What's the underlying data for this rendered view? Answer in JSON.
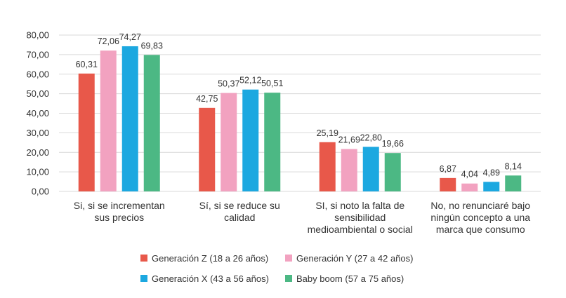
{
  "chart_data": {
    "type": "bar",
    "categories": [
      [
        "Si, si se incrementan",
        "sus precios"
      ],
      [
        "Sí, si se reduce su",
        "calidad"
      ],
      [
        "SI, si noto la falta de",
        "sensibilidad",
        "medioambiental o social"
      ],
      [
        "No, no renunciaré bajo",
        "ningún concepto a una",
        "marca que consumo"
      ]
    ],
    "series": [
      {
        "name": "Generación Z (18 a 26 años)",
        "color": "#e8584a",
        "values": [
          60.31,
          42.75,
          25.19,
          6.87
        ],
        "labels": [
          "60,31",
          "42,75",
          "25,19",
          "6,87"
        ]
      },
      {
        "name": "Generación Y (27 a 42 años)",
        "color": "#f2a2c0",
        "values": [
          72.06,
          50.37,
          21.69,
          4.04
        ],
        "labels": [
          "72,06",
          "50,37",
          "21,69",
          "4,04"
        ]
      },
      {
        "name": "Generación X (43 a 56 años)",
        "color": "#1ca8e0",
        "values": [
          74.27,
          52.12,
          22.8,
          4.89
        ],
        "labels": [
          "74,27",
          "52,12",
          "22,80",
          "4,89"
        ]
      },
      {
        "name": "Baby boom (57 a 75 años)",
        "color": "#4cb884",
        "values": [
          69.83,
          50.51,
          19.66,
          8.14
        ],
        "labels": [
          "69,83",
          "50,51",
          "19,66",
          "8,14"
        ]
      }
    ],
    "ylim": [
      0,
      80
    ],
    "yticks": [
      "0,00",
      "10,00",
      "20,00",
      "30,00",
      "40,00",
      "50,00",
      "60,00",
      "70,00",
      "80,00"
    ],
    "grid": true,
    "legend_position": "bottom"
  }
}
